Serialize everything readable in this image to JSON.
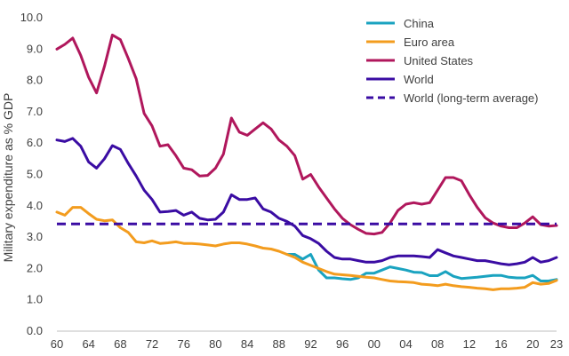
{
  "chart_data": {
    "type": "line",
    "title": "",
    "xlabel": "",
    "ylabel": "Military expenditure as % GDP",
    "xlim": [
      1960,
      2023
    ],
    "ylim": [
      0,
      10
    ],
    "yticks": [
      0,
      1,
      2,
      3,
      4,
      5,
      6,
      7,
      8,
      9,
      10
    ],
    "ytick_labels": [
      "0.0",
      "1.0",
      "2.0",
      "3.0",
      "4.0",
      "5.0",
      "6.0",
      "7.0",
      "8.0",
      "9.0",
      "10.0"
    ],
    "xticks": [
      1960,
      1964,
      1968,
      1972,
      1976,
      1980,
      1984,
      1988,
      1992,
      1996,
      2000,
      2004,
      2008,
      2012,
      2016,
      2020,
      2023
    ],
    "xtick_labels": [
      "60",
      "64",
      "68",
      "72",
      "76",
      "80",
      "84",
      "88",
      "92",
      "96",
      "00",
      "04",
      "08",
      "12",
      "16",
      "20",
      "23"
    ],
    "grid": false,
    "legend_position": "top-right",
    "series": [
      {
        "name": "China",
        "color": "#1AA3C0",
        "dash": false,
        "x": [
          1989,
          1990,
          1991,
          1992,
          1993,
          1994,
          1995,
          1996,
          1997,
          1998,
          1999,
          2000,
          2001,
          2002,
          2003,
          2004,
          2005,
          2006,
          2007,
          2008,
          2009,
          2010,
          2011,
          2012,
          2013,
          2014,
          2015,
          2016,
          2017,
          2018,
          2019,
          2020,
          2021,
          2022,
          2023
        ],
        "y": [
          2.45,
          2.45,
          2.3,
          2.45,
          1.95,
          1.7,
          1.7,
          1.67,
          1.65,
          1.7,
          1.85,
          1.85,
          1.95,
          2.05,
          2.0,
          1.95,
          1.88,
          1.87,
          1.77,
          1.77,
          1.9,
          1.75,
          1.68,
          1.7,
          1.72,
          1.75,
          1.78,
          1.78,
          1.72,
          1.7,
          1.7,
          1.78,
          1.6,
          1.6,
          1.65
        ]
      },
      {
        "name": "Euro area",
        "color": "#F39C1E",
        "dash": false,
        "x": [
          1960,
          1961,
          1962,
          1963,
          1964,
          1965,
          1966,
          1967,
          1968,
          1969,
          1970,
          1971,
          1972,
          1973,
          1974,
          1975,
          1976,
          1977,
          1978,
          1979,
          1980,
          1981,
          1982,
          1983,
          1984,
          1985,
          1986,
          1987,
          1988,
          1989,
          1990,
          1991,
          1992,
          1993,
          1994,
          1995,
          1996,
          1997,
          1998,
          1999,
          2000,
          2001,
          2002,
          2003,
          2004,
          2005,
          2006,
          2007,
          2008,
          2009,
          2010,
          2011,
          2012,
          2013,
          2014,
          2015,
          2016,
          2017,
          2018,
          2019,
          2020,
          2021,
          2022,
          2023
        ],
        "y": [
          3.8,
          3.7,
          3.95,
          3.95,
          3.75,
          3.57,
          3.52,
          3.55,
          3.3,
          3.15,
          2.85,
          2.82,
          2.88,
          2.8,
          2.82,
          2.85,
          2.8,
          2.8,
          2.78,
          2.75,
          2.72,
          2.78,
          2.82,
          2.82,
          2.78,
          2.72,
          2.65,
          2.62,
          2.55,
          2.45,
          2.35,
          2.2,
          2.1,
          2.0,
          1.9,
          1.82,
          1.8,
          1.78,
          1.75,
          1.72,
          1.7,
          1.65,
          1.6,
          1.58,
          1.57,
          1.55,
          1.5,
          1.48,
          1.45,
          1.5,
          1.45,
          1.42,
          1.4,
          1.37,
          1.35,
          1.32,
          1.35,
          1.35,
          1.37,
          1.4,
          1.55,
          1.5,
          1.52,
          1.62
        ]
      },
      {
        "name": "United States",
        "color": "#B0175C",
        "dash": false,
        "x": [
          1960,
          1961,
          1962,
          1963,
          1964,
          1965,
          1966,
          1967,
          1968,
          1969,
          1970,
          1971,
          1972,
          1973,
          1974,
          1975,
          1976,
          1977,
          1978,
          1979,
          1980,
          1981,
          1982,
          1983,
          1984,
          1985,
          1986,
          1987,
          1988,
          1989,
          1990,
          1991,
          1992,
          1993,
          1994,
          1995,
          1996,
          1997,
          1998,
          1999,
          2000,
          2001,
          2002,
          2003,
          2004,
          2005,
          2006,
          2007,
          2008,
          2009,
          2010,
          2011,
          2012,
          2013,
          2014,
          2015,
          2016,
          2017,
          2018,
          2019,
          2020,
          2021,
          2022,
          2023
        ],
        "y": [
          9.0,
          9.15,
          9.35,
          8.8,
          8.1,
          7.6,
          8.45,
          9.45,
          9.3,
          8.7,
          8.05,
          6.95,
          6.55,
          5.9,
          5.95,
          5.6,
          5.2,
          5.15,
          4.95,
          4.97,
          5.2,
          5.65,
          6.8,
          6.35,
          6.25,
          6.45,
          6.65,
          6.45,
          6.1,
          5.9,
          5.6,
          4.85,
          5.0,
          4.6,
          4.25,
          3.9,
          3.6,
          3.4,
          3.25,
          3.12,
          3.1,
          3.15,
          3.45,
          3.85,
          4.05,
          4.1,
          4.05,
          4.1,
          4.5,
          4.9,
          4.9,
          4.8,
          4.35,
          3.95,
          3.62,
          3.45,
          3.35,
          3.3,
          3.3,
          3.45,
          3.65,
          3.4,
          3.35,
          3.37
        ]
      },
      {
        "name": "World",
        "color": "#3A0CA3",
        "dash": false,
        "x": [
          1960,
          1961,
          1962,
          1963,
          1964,
          1965,
          1966,
          1967,
          1968,
          1969,
          1970,
          1971,
          1972,
          1973,
          1974,
          1975,
          1976,
          1977,
          1978,
          1979,
          1980,
          1981,
          1982,
          1983,
          1984,
          1985,
          1986,
          1987,
          1988,
          1989,
          1990,
          1991,
          1992,
          1993,
          1994,
          1995,
          1996,
          1997,
          1998,
          1999,
          2000,
          2001,
          2002,
          2003,
          2004,
          2005,
          2006,
          2007,
          2008,
          2009,
          2010,
          2011,
          2012,
          2013,
          2014,
          2015,
          2016,
          2017,
          2018,
          2019,
          2020,
          2021,
          2022,
          2023
        ],
        "y": [
          6.1,
          6.05,
          6.15,
          5.9,
          5.4,
          5.2,
          5.5,
          5.92,
          5.8,
          5.35,
          4.95,
          4.5,
          4.2,
          3.8,
          3.82,
          3.85,
          3.7,
          3.8,
          3.6,
          3.55,
          3.57,
          3.8,
          4.35,
          4.2,
          4.2,
          4.25,
          3.9,
          3.8,
          3.6,
          3.5,
          3.35,
          3.05,
          2.95,
          2.8,
          2.55,
          2.35,
          2.3,
          2.3,
          2.25,
          2.2,
          2.2,
          2.25,
          2.35,
          2.4,
          2.4,
          2.4,
          2.38,
          2.35,
          2.6,
          2.5,
          2.4,
          2.35,
          2.3,
          2.25,
          2.25,
          2.2,
          2.15,
          2.12,
          2.15,
          2.2,
          2.35,
          2.2,
          2.25,
          2.35
        ]
      },
      {
        "name": "World (long-term average)",
        "color": "#3A0CA3",
        "dash": true,
        "x": [
          1960,
          2023
        ],
        "y": [
          3.42,
          3.42
        ]
      }
    ]
  }
}
